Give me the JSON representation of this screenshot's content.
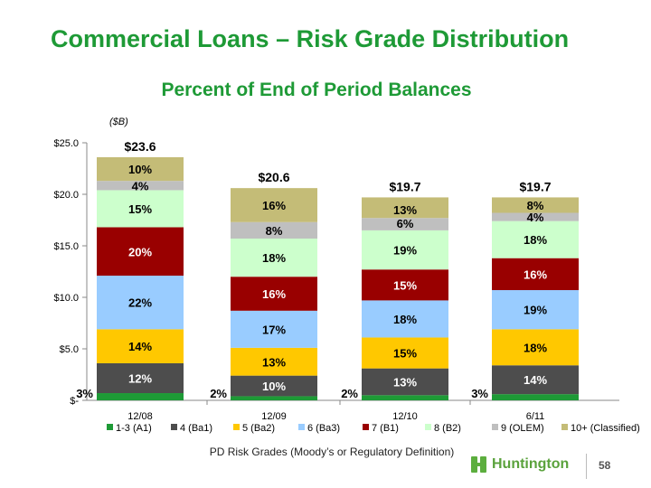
{
  "header": {
    "title": "Commercial Loans – Risk Grade Distribution",
    "subtitle": "Percent of End of Period Balances"
  },
  "footer": {
    "note": "PD Risk Grades (Moody’s or Regulatory Definition)",
    "logo_text": "Huntington",
    "page_number": "58"
  },
  "colors": {
    "title": "#1e9a36",
    "series": [
      "#1e9a36",
      "#4d4d4d",
      "#ffc800",
      "#99ccff",
      "#990000",
      "#ccffcc",
      "#bfbfbf",
      "#c4bc77"
    ]
  },
  "chart_data": {
    "type": "bar",
    "stacked": true,
    "unit_label": "($B)",
    "categories": [
      "12/08",
      "12/09",
      "12/10",
      "6/11"
    ],
    "totals": [
      23.6,
      20.6,
      19.7,
      19.7
    ],
    "total_labels": [
      "$23.6",
      "$20.6",
      "$19.7",
      "$19.7"
    ],
    "ylim": [
      0,
      25
    ],
    "yticks": [
      {
        "value": 0,
        "label": "$-"
      },
      {
        "value": 5,
        "label": "$5.0"
      },
      {
        "value": 10,
        "label": "$10.0"
      },
      {
        "value": 15,
        "label": "$15.0"
      },
      {
        "value": 20,
        "label": "$20.0"
      },
      {
        "value": 25,
        "label": "$25.0"
      }
    ],
    "legend_position": "bottom",
    "series": [
      {
        "name": "1-3 (A1)",
        "color": "#1e9a36",
        "values": [
          0.7,
          0.4,
          0.5,
          0.6
        ],
        "labels": [
          "3%",
          "2%",
          "2%",
          "3%"
        ]
      },
      {
        "name": "4 (Ba1)",
        "color": "#4d4d4d",
        "values": [
          2.9,
          2.0,
          2.6,
          2.8
        ],
        "labels": [
          "12%",
          "10%",
          "13%",
          "14%"
        ]
      },
      {
        "name": "5 (Ba2)",
        "color": "#ffc800",
        "values": [
          3.3,
          2.7,
          3.0,
          3.5
        ],
        "labels": [
          "14%",
          "13%",
          "15%",
          "18%"
        ]
      },
      {
        "name": "6 (Ba3)",
        "color": "#99ccff",
        "values": [
          5.2,
          3.6,
          3.6,
          3.8
        ],
        "labels": [
          "22%",
          "17%",
          "18%",
          "19%"
        ]
      },
      {
        "name": "7 (B1)",
        "color": "#990000",
        "values": [
          4.7,
          3.3,
          3.0,
          3.1
        ],
        "labels": [
          "20%",
          "16%",
          "15%",
          "16%"
        ]
      },
      {
        "name": "8 (B2)",
        "color": "#ccffcc",
        "values": [
          3.6,
          3.7,
          3.8,
          3.6
        ],
        "labels": [
          "15%",
          "18%",
          "19%",
          "18%"
        ]
      },
      {
        "name": "9 (OLEM)",
        "color": "#bfbfbf",
        "values": [
          0.9,
          1.6,
          1.2,
          0.8
        ],
        "labels": [
          "4%",
          "8%",
          "6%",
          "4%"
        ]
      },
      {
        "name": "10+ (Classified)",
        "color": "#c4bc77",
        "values": [
          2.3,
          3.3,
          2.0,
          1.5
        ],
        "labels": [
          "10%",
          "16%",
          "13%",
          "8%"
        ]
      }
    ]
  }
}
